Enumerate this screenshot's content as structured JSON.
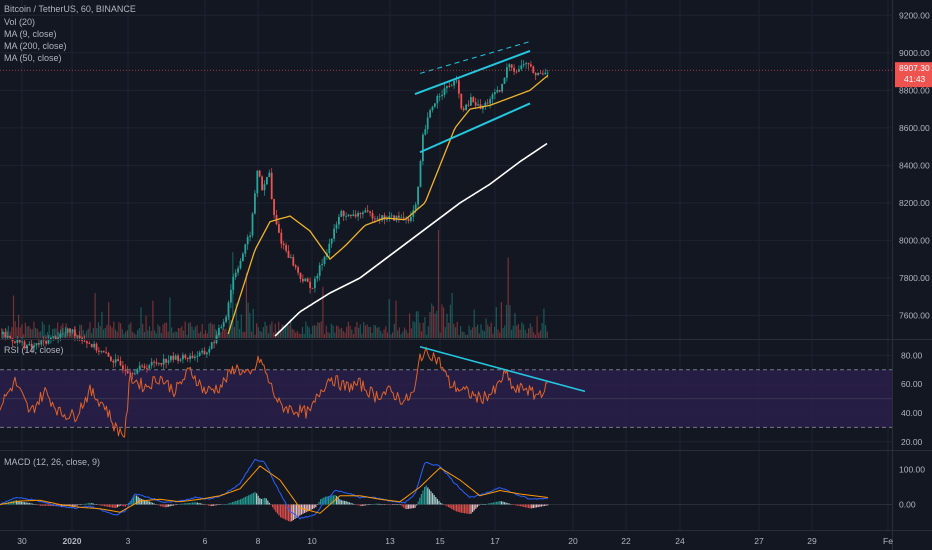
{
  "header": {
    "symbol_line": "Bitcoin / TetherUS, 60, BINANCE",
    "indicators": [
      "Vol (20)",
      "MA (9, close)",
      "MA (200, close)",
      "MA (50, close)"
    ]
  },
  "rsi_label": "RSI (14, close)",
  "macd_label": "MACD (12, 26, close, 9)",
  "price_tag": {
    "value": "8907.30",
    "countdown": "41:43",
    "color": "#ef5350"
  },
  "countdown_color": "#ef5350",
  "colors": {
    "background": "#131722",
    "up": "#26a69a",
    "down": "#ef5350",
    "ma9": "#f23645",
    "ma50": "#f0b429",
    "ma200": "#ffffff",
    "trendline": "#22c7e0",
    "rsi": "#e0622a",
    "rsi_band": "#2a1f4a",
    "macd_line": "#2962ff",
    "signal_line": "#ff9800"
  },
  "chart_data": [
    {
      "type": "candlestick",
      "title": "Bitcoin / TetherUS, 60, BINANCE",
      "y_ticks": [
        9200,
        9000,
        8800,
        8600,
        8400,
        8200,
        8000,
        7800,
        7600
      ],
      "ylim": [
        7480,
        9260
      ],
      "x_ticks": [
        "30",
        "2020",
        "3",
        "6",
        "8",
        "10",
        "13",
        "15",
        "17",
        "20",
        "22",
        "24",
        "27",
        "29",
        "Fe"
      ],
      "price_keypoints": [
        [
          0,
          7500
        ],
        [
          30,
          7430
        ],
        [
          70,
          7520
        ],
        [
          115,
          7350
        ],
        [
          130,
          7300
        ],
        [
          150,
          7340
        ],
        [
          170,
          7370
        ],
        [
          190,
          7380
        ],
        [
          205,
          7400
        ],
        [
          215,
          7480
        ],
        [
          225,
          7600
        ],
        [
          232,
          7800
        ],
        [
          240,
          7900
        ],
        [
          250,
          8050
        ],
        [
          257,
          8400
        ],
        [
          262,
          8250
        ],
        [
          268,
          8380
        ],
        [
          272,
          8150
        ],
        [
          280,
          8000
        ],
        [
          290,
          7900
        ],
        [
          300,
          7800
        ],
        [
          312,
          7750
        ],
        [
          320,
          7870
        ],
        [
          330,
          8000
        ],
        [
          340,
          8150
        ],
        [
          350,
          8120
        ],
        [
          360,
          8150
        ],
        [
          380,
          8120
        ],
        [
          395,
          8120
        ],
        [
          410,
          8120
        ],
        [
          416,
          8200
        ],
        [
          422,
          8550
        ],
        [
          430,
          8700
        ],
        [
          438,
          8780
        ],
        [
          448,
          8820
        ],
        [
          455,
          8850
        ],
        [
          462,
          8680
        ],
        [
          470,
          8750
        ],
        [
          480,
          8700
        ],
        [
          490,
          8760
        ],
        [
          500,
          8800
        ],
        [
          508,
          8950
        ],
        [
          515,
          8900
        ],
        [
          525,
          8950
        ],
        [
          535,
          8880
        ],
        [
          548,
          8910
        ]
      ],
      "ma50_keypoints": [
        [
          228,
          7500
        ],
        [
          240,
          7700
        ],
        [
          255,
          7950
        ],
        [
          270,
          8100
        ],
        [
          290,
          8130
        ],
        [
          310,
          8050
        ],
        [
          330,
          7900
        ],
        [
          345,
          7970
        ],
        [
          365,
          8080
        ],
        [
          385,
          8120
        ],
        [
          405,
          8110
        ],
        [
          425,
          8200
        ],
        [
          440,
          8400
        ],
        [
          455,
          8600
        ],
        [
          470,
          8700
        ],
        [
          490,
          8720
        ],
        [
          510,
          8760
        ],
        [
          530,
          8800
        ],
        [
          548,
          8880
        ]
      ],
      "ma200_keypoints": [
        [
          275,
          7490
        ],
        [
          300,
          7620
        ],
        [
          330,
          7720
        ],
        [
          360,
          7800
        ],
        [
          380,
          7880
        ],
        [
          405,
          7980
        ],
        [
          430,
          8080
        ],
        [
          460,
          8200
        ],
        [
          490,
          8300
        ],
        [
          520,
          8420
        ],
        [
          548,
          8520
        ]
      ],
      "trendlines": [
        {
          "from": [
            415,
            8780
          ],
          "to": [
            530,
            9010
          ],
          "style": "solid"
        },
        {
          "from": [
            420,
            8470
          ],
          "to": [
            530,
            8730
          ],
          "style": "solid"
        },
        {
          "from": [
            420,
            8890
          ],
          "to": [
            530,
            9060
          ],
          "style": "dashed"
        }
      ],
      "volume": {
        "max": 3000,
        "baseline": 0
      }
    },
    {
      "type": "line",
      "title": "RSI (14, close)",
      "y_ticks": [
        80,
        60,
        40,
        20
      ],
      "ylim": [
        15,
        90
      ],
      "bands": {
        "upper": 70,
        "lower": 30
      },
      "rsi_keypoints": [
        [
          0,
          45
        ],
        [
          15,
          62
        ],
        [
          30,
          40
        ],
        [
          45,
          55
        ],
        [
          60,
          40
        ],
        [
          75,
          38
        ],
        [
          90,
          55
        ],
        [
          105,
          45
        ],
        [
          115,
          30
        ],
        [
          125,
          25
        ],
        [
          130,
          65
        ],
        [
          145,
          58
        ],
        [
          160,
          65
        ],
        [
          175,
          55
        ],
        [
          190,
          70
        ],
        [
          205,
          55
        ],
        [
          220,
          58
        ],
        [
          235,
          72
        ],
        [
          250,
          65
        ],
        [
          260,
          78
        ],
        [
          270,
          60
        ],
        [
          280,
          45
        ],
        [
          295,
          42
        ],
        [
          310,
          40
        ],
        [
          320,
          55
        ],
        [
          330,
          65
        ],
        [
          345,
          58
        ],
        [
          360,
          60
        ],
        [
          375,
          52
        ],
        [
          390,
          55
        ],
        [
          405,
          48
        ],
        [
          415,
          55
        ],
        [
          420,
          80
        ],
        [
          430,
          82
        ],
        [
          440,
          75
        ],
        [
          450,
          60
        ],
        [
          465,
          55
        ],
        [
          480,
          50
        ],
        [
          495,
          55
        ],
        [
          505,
          68
        ],
        [
          515,
          55
        ],
        [
          525,
          58
        ],
        [
          535,
          52
        ],
        [
          548,
          58
        ]
      ],
      "trendline": {
        "from": [
          420,
          86
        ],
        "to": [
          585,
          55
        ]
      }
    },
    {
      "type": "line",
      "title": "MACD (12, 26, close, 9)",
      "y_ticks": [
        100,
        0
      ],
      "ylim": [
        -70,
        150
      ],
      "macd_keypoints": [
        [
          0,
          0
        ],
        [
          15,
          20
        ],
        [
          30,
          15
        ],
        [
          45,
          5
        ],
        [
          60,
          -5
        ],
        [
          75,
          -10
        ],
        [
          90,
          -5
        ],
        [
          105,
          -20
        ],
        [
          115,
          -30
        ],
        [
          125,
          -20
        ],
        [
          135,
          30
        ],
        [
          150,
          20
        ],
        [
          165,
          5
        ],
        [
          180,
          10
        ],
        [
          195,
          20
        ],
        [
          210,
          15
        ],
        [
          225,
          30
        ],
        [
          240,
          60
        ],
        [
          255,
          130
        ],
        [
          265,
          120
        ],
        [
          275,
          60
        ],
        [
          290,
          -20
        ],
        [
          300,
          -40
        ],
        [
          315,
          -30
        ],
        [
          325,
          10
        ],
        [
          335,
          40
        ],
        [
          345,
          35
        ],
        [
          360,
          20
        ],
        [
          375,
          20
        ],
        [
          390,
          10
        ],
        [
          405,
          5
        ],
        [
          415,
          30
        ],
        [
          425,
          120
        ],
        [
          440,
          110
        ],
        [
          455,
          60
        ],
        [
          470,
          20
        ],
        [
          485,
          30
        ],
        [
          500,
          50
        ],
        [
          515,
          30
        ],
        [
          530,
          15
        ],
        [
          548,
          18
        ]
      ],
      "signal_keypoints": [
        [
          0,
          0
        ],
        [
          20,
          10
        ],
        [
          40,
          12
        ],
        [
          60,
          0
        ],
        [
          80,
          -8
        ],
        [
          100,
          -12
        ],
        [
          120,
          -22
        ],
        [
          140,
          10
        ],
        [
          160,
          15
        ],
        [
          180,
          8
        ],
        [
          200,
          15
        ],
        [
          220,
          25
        ],
        [
          240,
          45
        ],
        [
          260,
          110
        ],
        [
          280,
          70
        ],
        [
          300,
          -10
        ],
        [
          320,
          -25
        ],
        [
          340,
          25
        ],
        [
          360,
          25
        ],
        [
          380,
          15
        ],
        [
          400,
          8
        ],
        [
          420,
          50
        ],
        [
          440,
          105
        ],
        [
          460,
          70
        ],
        [
          480,
          25
        ],
        [
          500,
          40
        ],
        [
          520,
          30
        ],
        [
          548,
          20
        ]
      ]
    }
  ]
}
